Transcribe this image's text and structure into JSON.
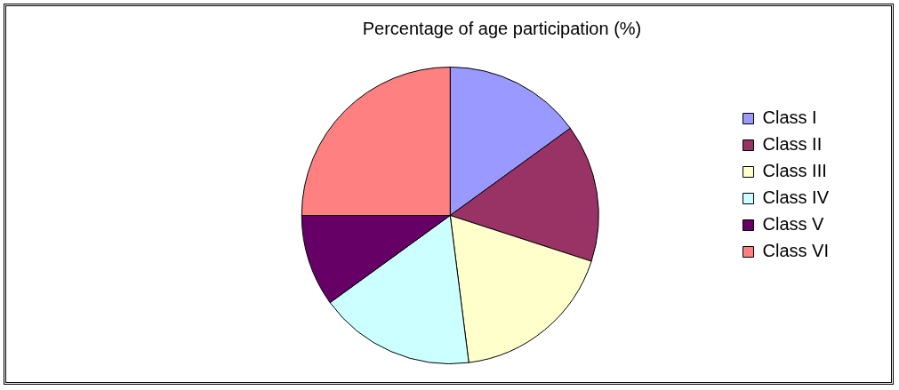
{
  "chart_data": {
    "type": "pie",
    "title": "Percentage of age participation (%)",
    "categories": [
      "Class I",
      "Class II",
      "Class III",
      "Class IV",
      "Class V",
      "Class VI"
    ],
    "values": [
      15,
      15,
      18,
      17,
      10,
      25
    ],
    "colors": [
      "#9999ff",
      "#993366",
      "#ffffcc",
      "#ccffff",
      "#660066",
      "#ff8080"
    ],
    "legend": "right"
  }
}
